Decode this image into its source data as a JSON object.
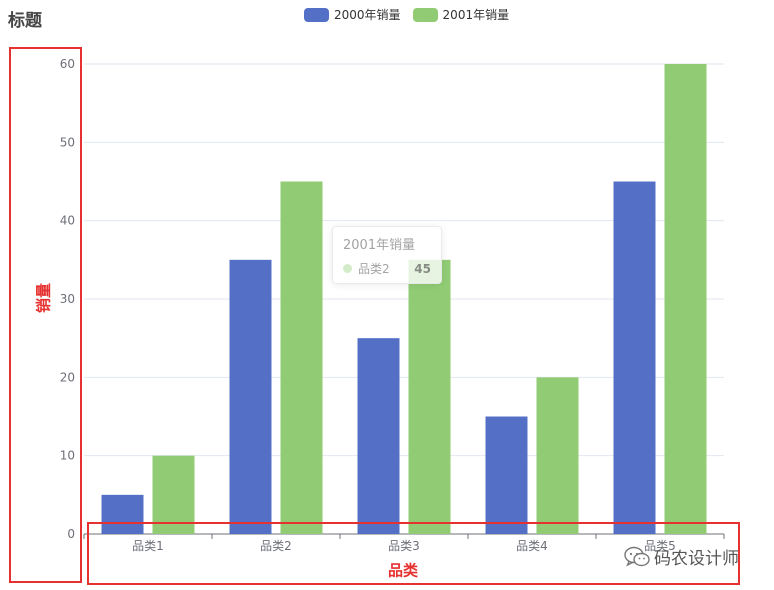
{
  "colors": {
    "series_2000": "#5470c6",
    "series_2001": "#91cc75",
    "annotation": "#e5312f",
    "axis": "#6e7079",
    "grid": "#e0e6f1"
  },
  "chart_data": {
    "type": "bar",
    "title": "标题",
    "xlabel": "品类",
    "ylabel": "销量",
    "categories": [
      "品类1",
      "品类2",
      "品类3",
      "品类4",
      "品类5"
    ],
    "series": [
      {
        "name": "2000年销量",
        "values": [
          5,
          35,
          25,
          15,
          45
        ]
      },
      {
        "name": "2001年销量",
        "values": [
          10,
          45,
          35,
          20,
          60
        ]
      }
    ],
    "ylim": [
      0,
      60
    ],
    "yticks": [
      0,
      10,
      20,
      30,
      40,
      50,
      60
    ],
    "grid": true,
    "legend_position": "top-center"
  },
  "tooltip": {
    "series": "2001年销量",
    "category": "品类2",
    "value": "45",
    "icon": "circle-marker"
  },
  "watermark": {
    "text": "码农设计师",
    "icon": "wechat-icon"
  }
}
